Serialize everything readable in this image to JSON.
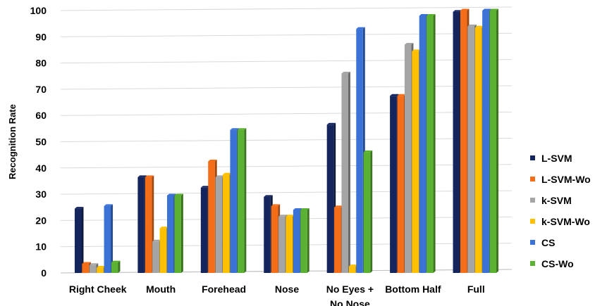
{
  "chart_data": {
    "type": "bar",
    "ylabel": "Recognition Rate",
    "ylim": [
      0,
      100
    ],
    "yticks": [
      0,
      10,
      20,
      30,
      40,
      50,
      60,
      70,
      80,
      90,
      100
    ],
    "grid": true,
    "legend_position": "right",
    "categories": [
      [
        "Right Cheek"
      ],
      [
        "Mouth"
      ],
      [
        "Forehead"
      ],
      [
        "Nose"
      ],
      [
        "No Eyes +",
        "No Nose"
      ],
      [
        "Bottom Half"
      ],
      [
        "Full"
      ]
    ],
    "series": [
      {
        "name": "L-SVM",
        "color": "#14255e",
        "values": [
          24.5,
          36.5,
          32.5,
          29,
          56.5,
          67.5,
          99.5
        ]
      },
      {
        "name": "L-SVM-Wo",
        "color": "#f46e1a",
        "values": [
          3.5,
          36.5,
          42.5,
          25.5,
          25,
          67.5,
          100
        ]
      },
      {
        "name": "k-SVM",
        "color": "#a5a5a5",
        "values": [
          3,
          12,
          36.5,
          21.5,
          76,
          87,
          94
        ]
      },
      {
        "name": "k-SVM-Wo",
        "color": "#ffc000",
        "values": [
          2,
          17,
          37.5,
          21.5,
          2.5,
          84.5,
          93.5
        ]
      },
      {
        "name": "CS",
        "color": "#3a72d6",
        "values": [
          25.5,
          29.5,
          54.5,
          24,
          93,
          98,
          100
        ]
      },
      {
        "name": "CS-Wo",
        "color": "#5bb131",
        "values": [
          4,
          29.5,
          54.5,
          24,
          46,
          98,
          100
        ]
      }
    ]
  }
}
